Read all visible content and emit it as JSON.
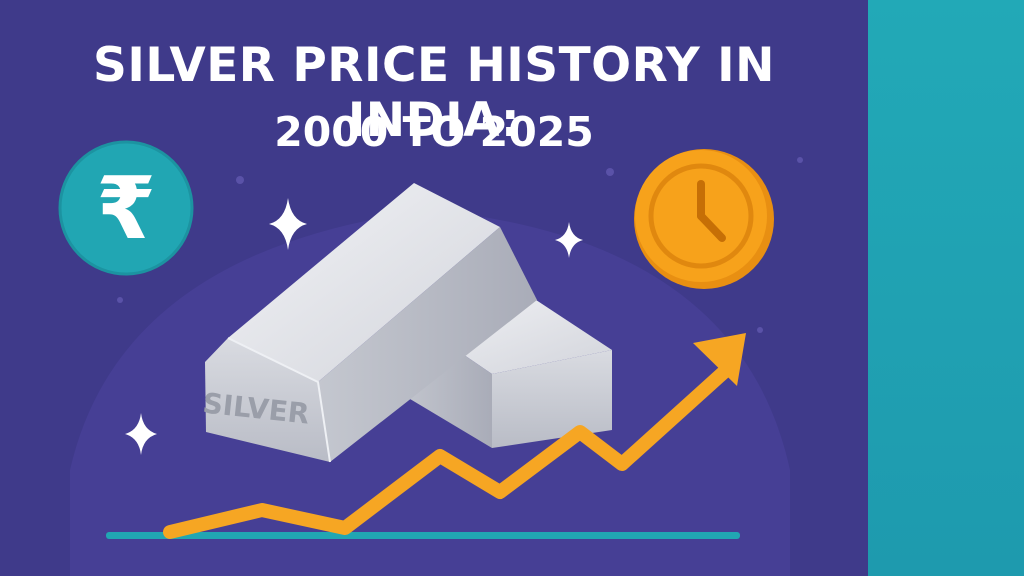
{
  "title": "SILVER PRICE HISTORY IN INDIA:",
  "subtitle": "2000 TO 2025",
  "bar_label": "SILVER",
  "rupee_symbol": "₹",
  "colors": {
    "background": "#3f3a8a",
    "side_panel": "#22a9b7",
    "arrow": "#f6a623",
    "coin": "#f7a21b",
    "rupee_badge": "#21a6b3",
    "silver": "#d7d9df"
  },
  "icons": [
    "rupee-icon",
    "clock-icon",
    "sparkle-icon",
    "trend-arrow-icon",
    "silver-bar-icon"
  ]
}
